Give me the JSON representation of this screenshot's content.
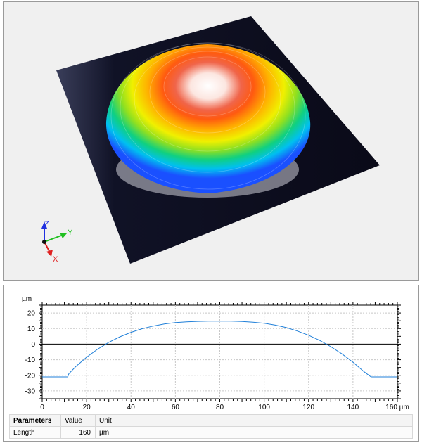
{
  "view3d": {
    "axes": {
      "z": "Z",
      "y": "Y",
      "x": "X"
    },
    "colors": {
      "background": "#f0f0f0",
      "base": "#0c0c20",
      "x_axis": "#e02020",
      "y_axis": "#20c020",
      "z_axis": "#2030e0"
    }
  },
  "profile": {
    "unit_label": "µm",
    "chart_data": {
      "type": "line",
      "xlabel": "µm",
      "ylabel": "µm",
      "xlim": [
        0,
        160
      ],
      "ylim": [
        -35,
        25
      ],
      "x_ticks": [
        "0",
        "20",
        "40",
        "60",
        "80",
        "100",
        "120",
        "140",
        "160 µm"
      ],
      "y_ticks": [
        "20",
        "10",
        "0",
        "-10",
        "-20",
        "-30"
      ],
      "grid": true,
      "line_color": "#1f7fd8",
      "series": [
        {
          "x": [
            0,
            5,
            10,
            11.5,
            12,
            15,
            20,
            25,
            30,
            35,
            40,
            45,
            50,
            55,
            60,
            65,
            70,
            75,
            80,
            85,
            90,
            95,
            100,
            105,
            110,
            115,
            120,
            125,
            130,
            135,
            140,
            145,
            148,
            148.5,
            150,
            155,
            160
          ],
          "y": [
            -21,
            -21,
            -21,
            -21,
            -19,
            -14.6,
            -8.4,
            -3.2,
            1.2,
            4.7,
            7.6,
            9.9,
            11.6,
            12.9,
            13.8,
            14.3,
            14.6,
            14.7,
            14.8,
            14.7,
            14.5,
            14.1,
            13.4,
            12.2,
            10.6,
            8.4,
            5.7,
            2.4,
            -1.6,
            -6.2,
            -11.6,
            -17.7,
            -20.9,
            -21,
            -21,
            -21,
            -21
          ]
        }
      ]
    },
    "table": {
      "headers": {
        "parameters": "Parameters",
        "value": "Value",
        "unit": "Unit"
      },
      "rows": [
        {
          "name": "Length",
          "value": "160",
          "unit": "µm"
        }
      ]
    }
  }
}
